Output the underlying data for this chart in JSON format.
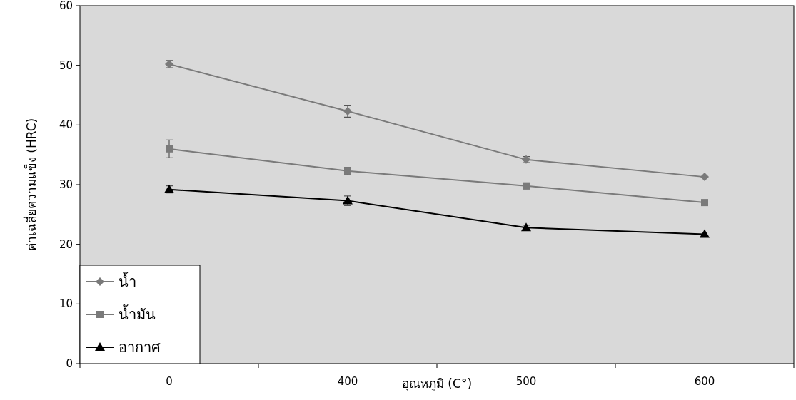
{
  "chart_data": {
    "type": "line",
    "xlabel": "อุณหภูมิ (C°)",
    "ylabel": "ค่าเฉลี่ยความแข็ง (HRC)",
    "categories": [
      "0",
      "400",
      "500",
      "600"
    ],
    "ylim": [
      0,
      60
    ],
    "yticks": [
      0,
      10,
      20,
      30,
      40,
      50,
      60
    ],
    "grid": false,
    "legend": "bottom left",
    "series": [
      {
        "name": "น้ำ",
        "color": "#7a7a7a",
        "marker": "diamond",
        "values": [
          50.2,
          42.3,
          34.2,
          31.3
        ],
        "errors": [
          0.6,
          1.0,
          0.5,
          null
        ]
      },
      {
        "name": "น้ำมัน",
        "color": "#7a7a7a",
        "marker": "square",
        "values": [
          36.0,
          32.3,
          29.8,
          27.0
        ],
        "errors": [
          1.5,
          0.6,
          0.5,
          null
        ]
      },
      {
        "name": "อากาศ",
        "color": "#000000",
        "marker": "triangle",
        "values": [
          29.2,
          27.3,
          22.8,
          21.7
        ],
        "errors": [
          0.6,
          0.8,
          0.4,
          null
        ]
      }
    ]
  }
}
